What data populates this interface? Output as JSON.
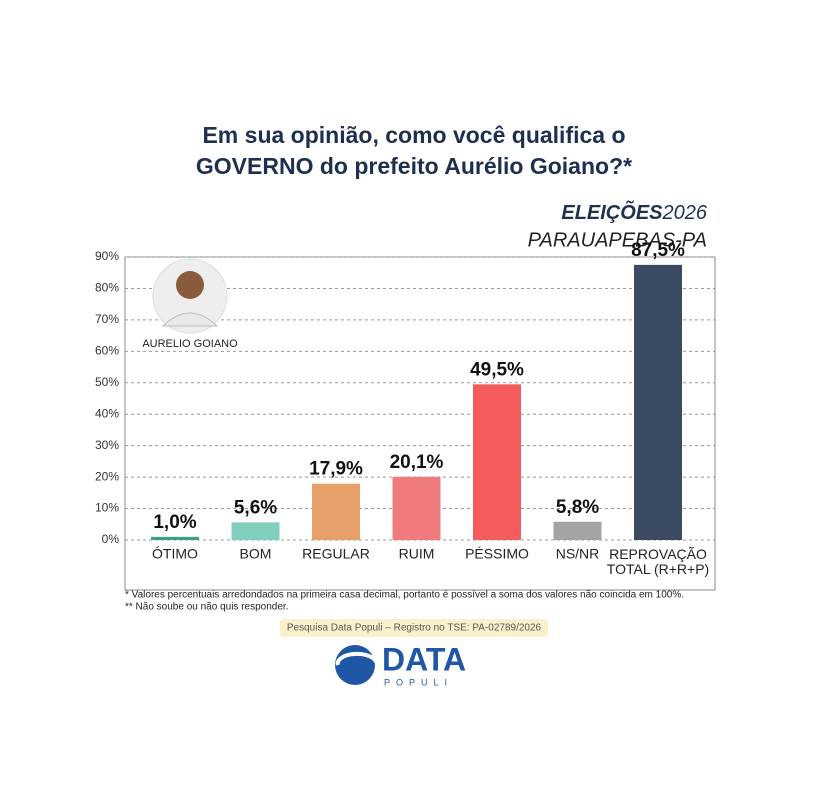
{
  "chart_data": {
    "type": "bar",
    "title": [
      "Em sua opinião, como você qualifica o",
      "GOVERNO do prefeito Aurélio Goiano?*"
    ],
    "brand": "ELEIÇÕES",
    "year": "2026",
    "location": "PARAUAPEBAS-PA",
    "photo_label": "AURELIO GOIANO",
    "categories": [
      "ÓTIMO",
      "BOM",
      "REGULAR",
      "RUIM",
      "PÉSSIMO",
      "NS/NR",
      "REPROVAÇÃO TOTAL (R+R+P)"
    ],
    "values": [
      1.0,
      5.6,
      17.9,
      20.1,
      49.5,
      5.8,
      87.5
    ],
    "value_labels": [
      "1,0%",
      "5,6%",
      "17,9%",
      "20,1%",
      "49,5%",
      "5,8%",
      "87,5%"
    ],
    "colors": [
      "#3e9e8c",
      "#7fcfbf",
      "#e8a06a",
      "#f07b7d",
      "#f45c5c",
      "#a3a3a3",
      "#3b4a62"
    ],
    "ylim": [
      0,
      90
    ],
    "yticks": [
      {
        "value": 0,
        "label": "0%"
      },
      {
        "value": 10,
        "label": "10%"
      },
      {
        "value": 20,
        "label": "20%"
      },
      {
        "value": 30,
        "label": "30%"
      },
      {
        "value": 40,
        "label": "40%"
      },
      {
        "value": 50,
        "label": "50%"
      },
      {
        "value": 60,
        "label": "60%"
      },
      {
        "value": 70,
        "label": "70%"
      },
      {
        "value": 80,
        "label": "80%"
      },
      {
        "value": 90,
        "label": "90%"
      }
    ],
    "grid": true,
    "footnotes": [
      "* Valores percentuais arredondados na primeira casa decimal, portanto é possível a soma dos valores não coincida em 100%.",
      "** Não soube ou não quis responder."
    ],
    "registration": "Pesquisa Data Populi – Registro no TSE: PA-02789/2026",
    "logo": [
      "DATA",
      "POPULI"
    ]
  }
}
